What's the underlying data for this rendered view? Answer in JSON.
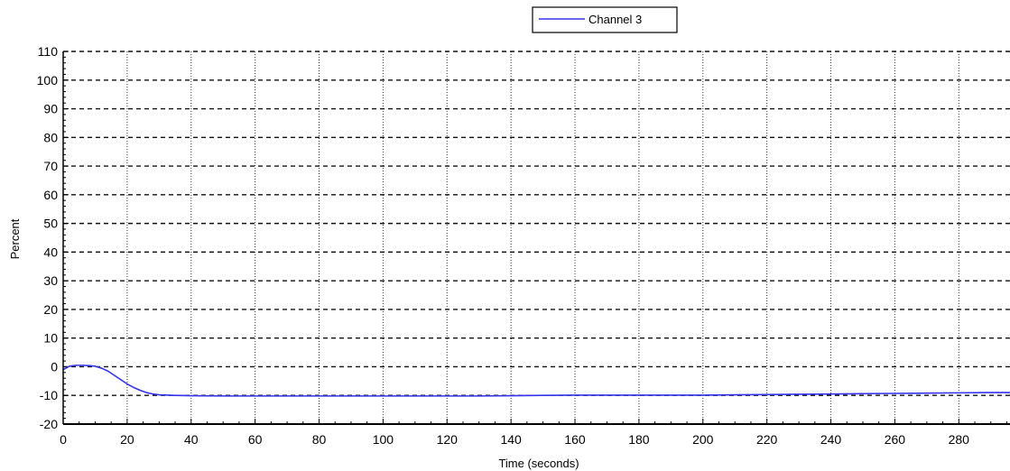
{
  "chart_data": {
    "type": "line",
    "xlabel": "Time (seconds)",
    "ylabel": "Percent",
    "xlim": [
      0,
      296
    ],
    "ylim": [
      -20,
      110
    ],
    "x_ticks": [
      0,
      20,
      40,
      60,
      80,
      100,
      120,
      140,
      160,
      180,
      200,
      220,
      240,
      260,
      280
    ],
    "y_ticks": [
      -20,
      -10,
      0,
      10,
      20,
      30,
      40,
      50,
      60,
      70,
      80,
      90,
      100,
      110
    ],
    "x_minor_step": 5,
    "y_minor_step": 2,
    "grid": true,
    "legend_position": "top-center",
    "series": [
      {
        "name": "Channel 3",
        "color": "#3333ee",
        "x": [
          0,
          2,
          4,
          6,
          8,
          10,
          12,
          14,
          16,
          18,
          20,
          22,
          24,
          26,
          28,
          30,
          35,
          40,
          50,
          60,
          70,
          80,
          90,
          100,
          110,
          120,
          130,
          140,
          150,
          160,
          170,
          180,
          190,
          200,
          210,
          220,
          230,
          240,
          250,
          260,
          270,
          280,
          290,
          296
        ],
        "y": [
          -1.0,
          0.2,
          0.5,
          0.5,
          0.4,
          0.2,
          -0.5,
          -1.5,
          -3.0,
          -4.5,
          -6.0,
          -7.2,
          -8.2,
          -9.0,
          -9.5,
          -9.8,
          -10.0,
          -10.1,
          -10.2,
          -10.2,
          -10.2,
          -10.2,
          -10.2,
          -10.2,
          -10.2,
          -10.2,
          -10.2,
          -10.1,
          -10.0,
          -9.9,
          -9.9,
          -9.9,
          -9.9,
          -9.9,
          -9.8,
          -9.7,
          -9.6,
          -9.5,
          -9.4,
          -9.3,
          -9.2,
          -9.1,
          -9.0,
          -9.0
        ]
      }
    ]
  }
}
